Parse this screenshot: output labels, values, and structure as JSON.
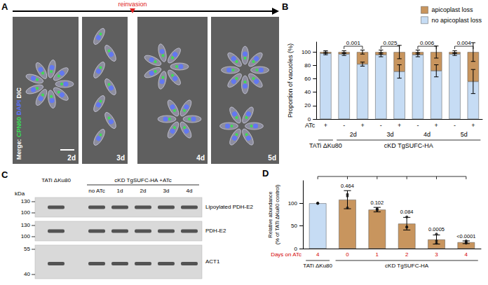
{
  "panel_labels": [
    "A",
    "B",
    "C",
    "D"
  ],
  "panel_a": {
    "merge_label": "Merge:",
    "channels": [
      {
        "name": "CPN60",
        "color": "#3ddc58"
      },
      {
        "name": "DAPI",
        "color": "#5b74ff"
      },
      {
        "name": "DIC",
        "color": "#ffffff"
      }
    ],
    "time_points": [
      "2d",
      "3d",
      "4d",
      "5d"
    ],
    "event": {
      "label": "reinvasion",
      "color": "#e02020"
    }
  },
  "panel_c": {
    "unit": "kDa",
    "lanes": [
      "TATi ΔKu80",
      "no ATc",
      "1d",
      "2d",
      "3d",
      "4d"
    ],
    "lane_group": "cKD TgSUFC-HA +ATc",
    "blots": [
      {
        "label": "Lipoylated PDH-E2",
        "markers": [
          130,
          100
        ]
      },
      {
        "label": "PDH-E2",
        "markers": [
          130,
          100
        ]
      },
      {
        "label": "ACT1",
        "markers": [
          55,
          40
        ]
      }
    ]
  },
  "chart_data": [
    {
      "type": "bar",
      "stacked": true,
      "y_label": "Proportion of vacuoles (%)",
      "category_title": "ATc",
      "categories": [
        "+",
        "-",
        "+",
        "-",
        "+",
        "-",
        "+",
        "-",
        "+"
      ],
      "days": [
        null,
        "2d",
        "2d",
        "3d",
        "3d",
        "4d",
        "4d",
        "5d",
        "5d"
      ],
      "strains": [
        "TATi ΔKu80",
        "cKD TgSUFC-HA",
        "cKD TgSUFC-HA",
        "cKD TgSUFC-HA",
        "cKD TgSUFC-HA",
        "cKD TgSUFC-HA",
        "cKD TgSUFC-HA",
        "cKD TgSUFC-HA",
        "cKD TgSUFC-HA"
      ],
      "series": [
        {
          "name": "no apicoplast loss",
          "color": "#c6dcf4",
          "values": [
            98,
            97,
            82,
            96,
            71,
            96,
            72,
            97,
            56
          ],
          "errors": [
            2,
            2,
            3,
            3,
            10,
            3,
            9,
            2,
            18
          ]
        },
        {
          "name": "apicoplast loss",
          "color": "#c8955e",
          "values": [
            2,
            3,
            18,
            4,
            29,
            4,
            28,
            3,
            44
          ],
          "errors": [
            2,
            2,
            3,
            3,
            10,
            3,
            9,
            2,
            14
          ]
        }
      ],
      "p_values": [
        null,
        null,
        "0.001",
        null,
        "0.025",
        null,
        "0.006",
        null,
        "0.004"
      ],
      "ylim": [
        0,
        115
      ],
      "yticks": [
        0,
        20,
        40,
        60,
        80,
        100
      ],
      "legend": "top-right",
      "grid": false
    },
    {
      "type": "bar",
      "y_label": "Relative abundance\n(% of TATi ΔKu80 control)",
      "category_title": "Days on ATc",
      "categories": [
        "4",
        "0",
        "1",
        "2",
        "3",
        "4"
      ],
      "strains": [
        "TATi ΔKu80",
        "cKD TgSUFC-HA",
        "cKD TgSUFC-HA",
        "cKD TgSUFC-HA",
        "cKD TgSUFC-HA",
        "cKD TgSUFC-HA"
      ],
      "values": [
        100,
        108,
        86,
        55,
        20,
        14
      ],
      "errors": [
        0,
        20,
        5,
        14,
        10,
        3
      ],
      "replicates": [
        [
          100,
          100,
          100
        ],
        [
          120,
          116,
          90
        ],
        [
          88,
          86,
          85
        ],
        [
          70,
          48,
          47
        ],
        [
          32,
          12,
          17
        ],
        [
          17,
          14,
          12
        ]
      ],
      "colors": [
        "#c6dcf4",
        "#c8955e",
        "#c8955e",
        "#c8955e",
        "#c8955e",
        "#c8955e"
      ],
      "p_values": [
        null,
        "0.464",
        "0.102",
        "0.084",
        "0.0005",
        "<0.0001"
      ],
      "ylim": [
        0,
        150
      ],
      "yticks": [
        0,
        50,
        100
      ],
      "grid": false
    }
  ]
}
